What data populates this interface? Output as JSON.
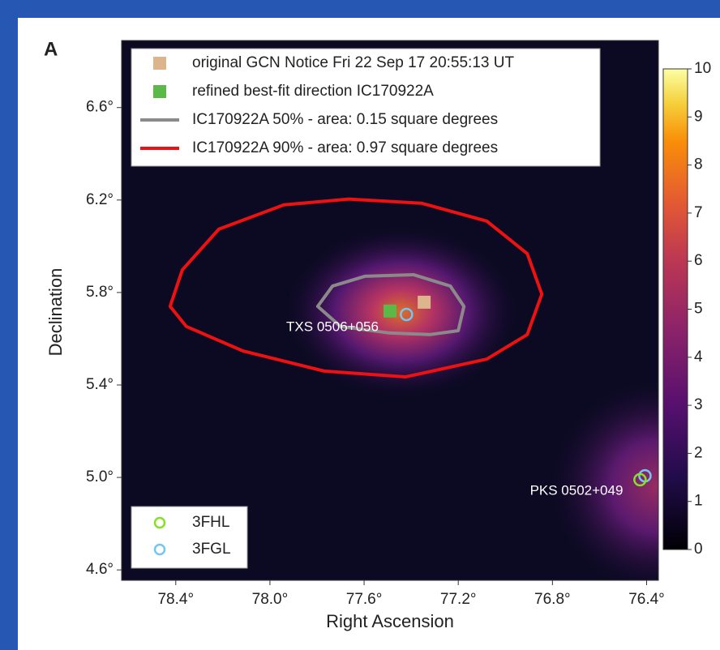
{
  "chart_data": {
    "type": "scatter",
    "panel_label": "A",
    "x_label": "Right Ascension",
    "y_label": "Declination",
    "xlim": [
      78.63,
      76.35
    ],
    "ylim": [
      4.555,
      6.89
    ],
    "xticks": [
      {
        "value": 78.4,
        "label": "78.4°"
      },
      {
        "value": 78.0,
        "label": "78.0°"
      },
      {
        "value": 77.6,
        "label": "77.6°"
      },
      {
        "value": 77.2,
        "label": "77.2°"
      },
      {
        "value": 76.8,
        "label": "76.8°"
      },
      {
        "value": 76.4,
        "label": "76.4°"
      }
    ],
    "yticks": [
      {
        "value": 4.6,
        "label": "4.6°"
      },
      {
        "value": 5.0,
        "label": "5.0°"
      },
      {
        "value": 5.4,
        "label": "5.4°"
      },
      {
        "value": 5.8,
        "label": "5.8°"
      },
      {
        "value": 6.2,
        "label": "6.2°"
      },
      {
        "value": 6.6,
        "label": "6.6°"
      }
    ],
    "series": [
      {
        "name": "original GCN Notice Fri 22 Sep 17 20:55:13 UT",
        "color": "#dcb58c",
        "marker": "square",
        "x": [
          77.345
        ],
        "y": [
          5.758
        ]
      },
      {
        "name": "refined best-fit direction IC170922A",
        "color": "#5bb947",
        "marker": "square",
        "x": [
          77.49
        ],
        "y": [
          5.72
        ]
      },
      {
        "name": "IC170922A 50% - area: 0.15 square degrees",
        "color": "#8a8a8a",
        "marker": "contour",
        "x": [
          77.797,
          77.734,
          77.597,
          77.39,
          77.234,
          77.176,
          77.2,
          77.321,
          77.493,
          77.7
        ],
        "y": [
          5.74,
          5.828,
          5.87,
          5.877,
          5.828,
          5.74,
          5.635,
          5.618,
          5.625,
          5.653
        ]
      },
      {
        "name": "IC170922A 90% - area: 0.97 square degrees",
        "color": "#ee1111",
        "marker": "contour",
        "x": [
          78.424,
          78.372,
          78.217,
          77.941,
          77.666,
          77.355,
          77.079,
          76.907,
          76.845,
          76.907,
          77.079,
          77.424,
          77.769,
          78.114,
          78.355
        ],
        "y": [
          5.74,
          5.898,
          6.074,
          6.179,
          6.204,
          6.186,
          6.109,
          5.968,
          5.793,
          5.618,
          5.512,
          5.435,
          5.46,
          5.547,
          5.653
        ]
      },
      {
        "name": "3FHL",
        "color": "#86e02a",
        "marker": "circle",
        "x": [
          76.428
        ],
        "y": [
          4.99
        ]
      },
      {
        "name": "3FGL",
        "color": "#74c6f2",
        "marker": "circle",
        "x": [
          77.42,
          76.407
        ],
        "y": [
          5.705,
          5.007
        ]
      }
    ],
    "annotations": [
      "TXS 0506+056",
      "PKS 0502+049"
    ],
    "colorbar": {
      "lim": [
        0,
        10
      ],
      "ticks": [
        0,
        1,
        2,
        3,
        4,
        5,
        6,
        7,
        8,
        9,
        10
      ],
      "colormap": "inferno"
    }
  }
}
